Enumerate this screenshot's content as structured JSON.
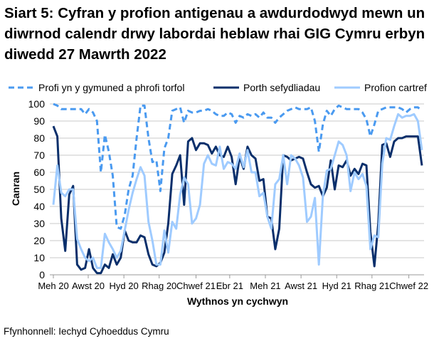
{
  "chart_data": {
    "type": "line",
    "title": "Siart 5: Cyfran y profion antigenau a awdurdodwyd mewn un diwrnod calendr drwy labordai heblaw rhai GIG Cymru erbyn diwedd 27 Mawrth 2022",
    "xlabel": "Wythnos yn cychwyn",
    "ylabel": "Canran",
    "ylim": [
      0,
      100
    ],
    "yticks": [
      0,
      10,
      20,
      30,
      40,
      50,
      60,
      70,
      80,
      90,
      100
    ],
    "grid": true,
    "legend": "top",
    "x_ticks": [
      {
        "label": "Meh 20",
        "at": 0
      },
      {
        "label": "Awst 20",
        "at": 8.8
      },
      {
        "label": "Hyd 20",
        "at": 17.8
      },
      {
        "label": "Rhag 20",
        "at": 26.7
      },
      {
        "label": "Chwef 21",
        "at": 36
      },
      {
        "label": "Ebr 21",
        "at": 44.5
      },
      {
        "label": "Meh 21",
        "at": 53.5
      },
      {
        "label": "Awst 21",
        "at": 62.5
      },
      {
        "label": "Hyd 21",
        "at": 71.5
      },
      {
        "label": "Rhag 21",
        "at": 80.4
      },
      {
        "label": "Chwef 22",
        "at": 89.7
      }
    ],
    "series": [
      {
        "name": "Profi yn y gymuned a phrofi torfol",
        "color": "#4a9af0",
        "dashed": true,
        "values": [
          100,
          99,
          97,
          97,
          97,
          97,
          97,
          97,
          94,
          97,
          95,
          90,
          60,
          82,
          72,
          58,
          28,
          27,
          35,
          50,
          58,
          80,
          99,
          99,
          80,
          66,
          67,
          49,
          74,
          80,
          96,
          97,
          98,
          89,
          96,
          95,
          95,
          96,
          96,
          97,
          96,
          94,
          93,
          93,
          95,
          94,
          89,
          93,
          92,
          94,
          93,
          94,
          92,
          95,
          92,
          92,
          89,
          92,
          94,
          96,
          97,
          98,
          97,
          97,
          97,
          98,
          90,
          72,
          88,
          96,
          93,
          97,
          99,
          98,
          97,
          97,
          97,
          97,
          95,
          91,
          81,
          88,
          96,
          97,
          98,
          98,
          98,
          98,
          97,
          95,
          97,
          98,
          98,
          96
        ]
      },
      {
        "name": "Porth sefydliadau",
        "color": "#0a2f6b",
        "dashed": false,
        "values": [
          87,
          81,
          33,
          14,
          47,
          52,
          6,
          3,
          4,
          15,
          4,
          1,
          1,
          6,
          4,
          12,
          6,
          10,
          26,
          20,
          19,
          19,
          23,
          22,
          12,
          6,
          5,
          7,
          13,
          30,
          59,
          64,
          70,
          41,
          78,
          80,
          73,
          77,
          77,
          76,
          71,
          75,
          70,
          69,
          75,
          69,
          53,
          69,
          62,
          75,
          70,
          68,
          55,
          56,
          34,
          33,
          15,
          27,
          70,
          69,
          67,
          68,
          69,
          68,
          60,
          53,
          51,
          52,
          46,
          51,
          67,
          50,
          64,
          63,
          67,
          58,
          62,
          59,
          65,
          64,
          25,
          5,
          30,
          76,
          77,
          69,
          78,
          80,
          80,
          81,
          81,
          81,
          81,
          64
        ]
      },
      {
        "name": "Profion cartref",
        "color": "#9fcbff",
        "dashed": false,
        "values": [
          41,
          64,
          48,
          46,
          50,
          50,
          21,
          15,
          10,
          8,
          10,
          4,
          4,
          24,
          19,
          15,
          10,
          14,
          26,
          38,
          48,
          56,
          63,
          58,
          31,
          20,
          6,
          6,
          26,
          13,
          31,
          27,
          47,
          57,
          53,
          30,
          33,
          41,
          65,
          70,
          65,
          64,
          75,
          62,
          66,
          65,
          62,
          71,
          63,
          73,
          60,
          60,
          46,
          48,
          34,
          27,
          53,
          56,
          70,
          53,
          70,
          68,
          64,
          57,
          31,
          34,
          45,
          6,
          46,
          61,
          62,
          70,
          78,
          76,
          70,
          49,
          60,
          56,
          59,
          52,
          15,
          23,
          22,
          65,
          80,
          79,
          87,
          94,
          92,
          93,
          93,
          94,
          90,
          73
        ]
      }
    ]
  },
  "source": "Ffynhonnell: Iechyd Cyhoeddus Cymru"
}
